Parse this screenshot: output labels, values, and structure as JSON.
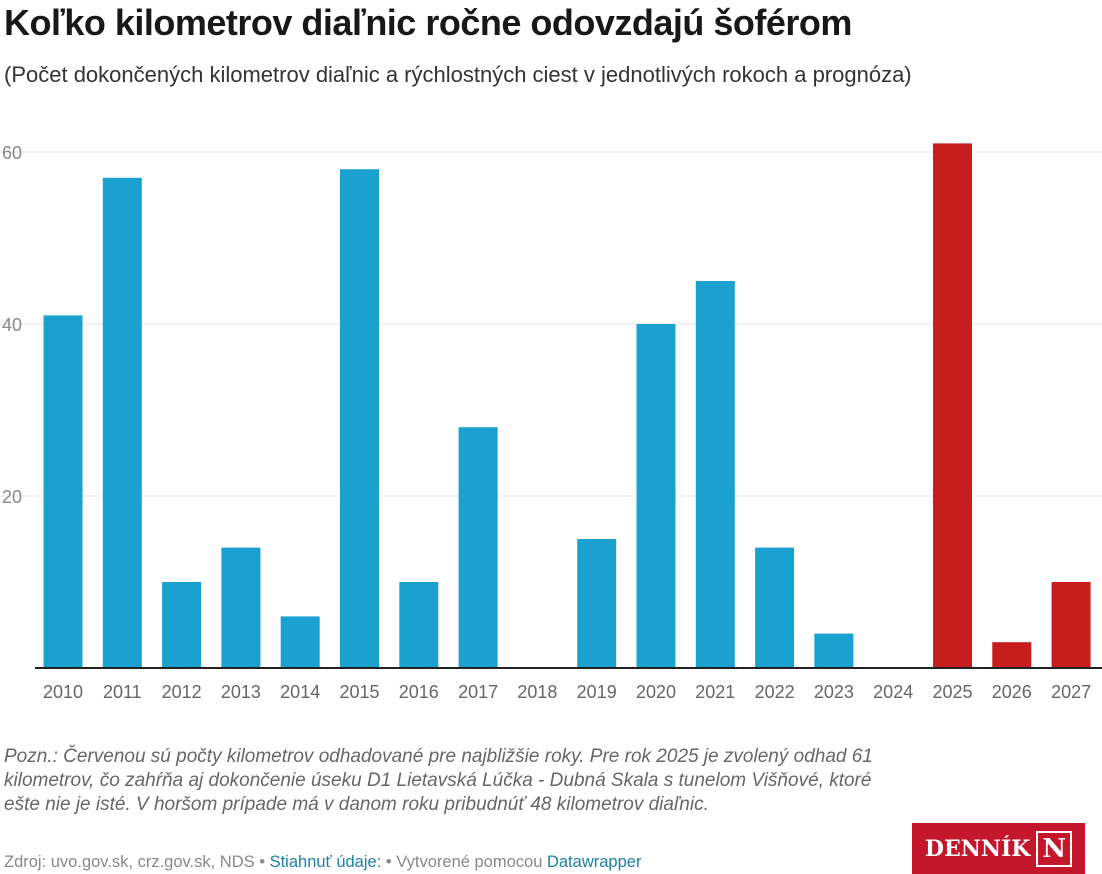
{
  "title": "Koľko kilometrov diaľnic ročne odovzdajú šoférom",
  "subtitle": "(Počet dokončených kilometrov diaľnic a rýchlostných ciest v jednotlivých rokoch a prognóza)",
  "chart_data": {
    "type": "bar",
    "categories": [
      "2010",
      "2011",
      "2012",
      "2013",
      "2014",
      "2015",
      "2016",
      "2017",
      "2018",
      "2019",
      "2020",
      "2021",
      "2022",
      "2023",
      "2024",
      "2025",
      "2026",
      "2027"
    ],
    "values": [
      41,
      57,
      10,
      14,
      6,
      58,
      10,
      28,
      0,
      15,
      40,
      45,
      14,
      4,
      0,
      61,
      3,
      10
    ],
    "estimated": [
      false,
      false,
      false,
      false,
      false,
      false,
      false,
      false,
      false,
      false,
      false,
      false,
      false,
      false,
      false,
      true,
      true,
      true
    ],
    "colors": {
      "actual": "#1ba1cf",
      "estimate": "#c71e1d"
    },
    "yticks": [
      "20",
      "40",
      "60"
    ],
    "ylim": [
      0,
      62
    ],
    "grid": true
  },
  "note": "Pozn.: Červenou sú počty kilometrov odhadované pre najbližšie roky. Pre rok 2025 je zvolený odhad 61 kilometrov, čo zahŕňa aj dokončenie úseku D1 Lietavská Lúčka - Dubná Skala s tunelom Višňové, ktoré ešte nie je isté. V horšom prípade má v danom roku pribudnúť 48 kilometrov diaľnic.",
  "footer": {
    "source": "Zdroj: uvo.gov.sk, crz.gov.sk, NDS",
    "sep1": " • ",
    "download": "Stiahnuť údaje:",
    "sep2": " • Vytvorené pomocou ",
    "tool": "Datawrapper"
  },
  "logo": {
    "text": "DENNÍK",
    "letter": "N"
  }
}
